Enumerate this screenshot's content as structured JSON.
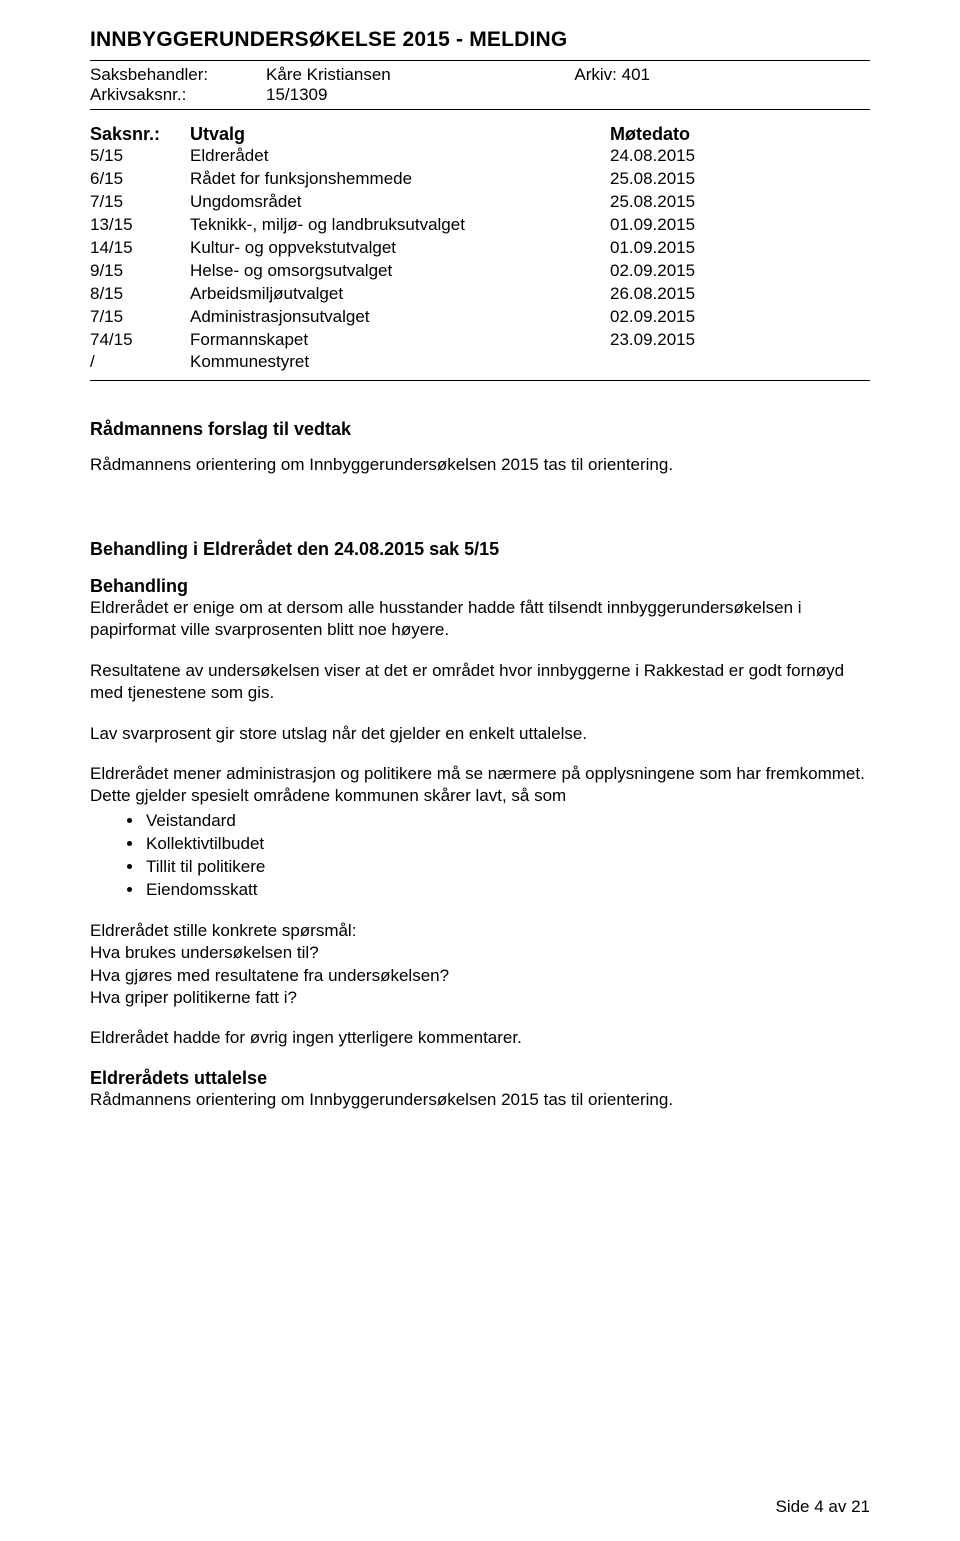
{
  "title": "INNBYGGERUNDERSØKELSE 2015 - MELDING",
  "meta": {
    "handler_label": "Saksbehandler:",
    "handler_value": "Kåre Kristiansen",
    "arkiv_label": "Arkiv: 401",
    "casefile_label": "Arkivsaksnr.:",
    "casefile_value": "15/1309"
  },
  "table": {
    "head_col1": "Saksnr.:",
    "head_col2": "Utvalg",
    "head_col3": "Møtedato",
    "rows": [
      {
        "c1": "5/15",
        "c2": "Eldrerådet",
        "c3": "24.08.2015"
      },
      {
        "c1": "6/15",
        "c2": "Rådet for funksjonshemmede",
        "c3": "25.08.2015"
      },
      {
        "c1": "7/15",
        "c2": "Ungdomsrådet",
        "c3": "25.08.2015"
      },
      {
        "c1": "13/15",
        "c2": "Teknikk-, miljø- og landbruksutvalget",
        "c3": "01.09.2015"
      },
      {
        "c1": "14/15",
        "c2": "Kultur- og oppvekstutvalget",
        "c3": "01.09.2015"
      },
      {
        "c1": "9/15",
        "c2": "Helse- og omsorgsutvalget",
        "c3": "02.09.2015"
      },
      {
        "c1": "8/15",
        "c2": "Arbeidsmiljøutvalget",
        "c3": "26.08.2015"
      },
      {
        "c1": "7/15",
        "c2": "Administrasjonsutvalget",
        "c3": "02.09.2015"
      },
      {
        "c1": "74/15",
        "c2": "Formannskapet",
        "c3": "23.09.2015"
      },
      {
        "c1": "/",
        "c2": "Kommunestyret",
        "c3": ""
      }
    ]
  },
  "proposal_heading": "Rådmannens forslag til vedtak",
  "proposal_text": "Rådmannens orientering om Innbyggerundersøkelsen 2015 tas til orientering.",
  "treatment_heading": "Behandling i Eldrerådet den 24.08.2015 sak 5/15",
  "treatment_sub": "Behandling",
  "para1": "Eldrerådet er enige om at dersom alle husstander hadde fått tilsendt innbyggerundersøkelsen i papirformat ville svarprosenten blitt noe høyere.",
  "para2": "Resultatene av undersøkelsen viser at det er området hvor innbyggerne i Rakkestad er godt fornøyd med tjenestene som gis.",
  "para3": "Lav svarprosent gir store utslag når det gjelder en enkelt uttalelse.",
  "para4": "Eldrerådet mener administrasjon og politikere må se nærmere på opplysningene som har fremkommet. Dette gjelder spesielt områdene kommunen skårer lavt, så som",
  "bullets": [
    "Veistandard",
    "Kollektivtilbudet",
    "Tillit til politikere",
    "Eiendomsskatt"
  ],
  "questions_intro": "Eldrerådet stille konkrete spørsmål:",
  "q1": "Hva brukes undersøkelsen til?",
  "q2": "Hva gjøres med resultatene fra undersøkelsen?",
  "q3": "Hva griper politikerne fatt i?",
  "closing": "Eldrerådet hadde for øvrig ingen ytterligere kommentarer.",
  "statement_heading": "Eldrerådets uttalelse",
  "statement_text": "Rådmannens orientering om Innbyggerundersøkelsen 2015 tas til orientering.",
  "footer": "Side 4 av 21"
}
